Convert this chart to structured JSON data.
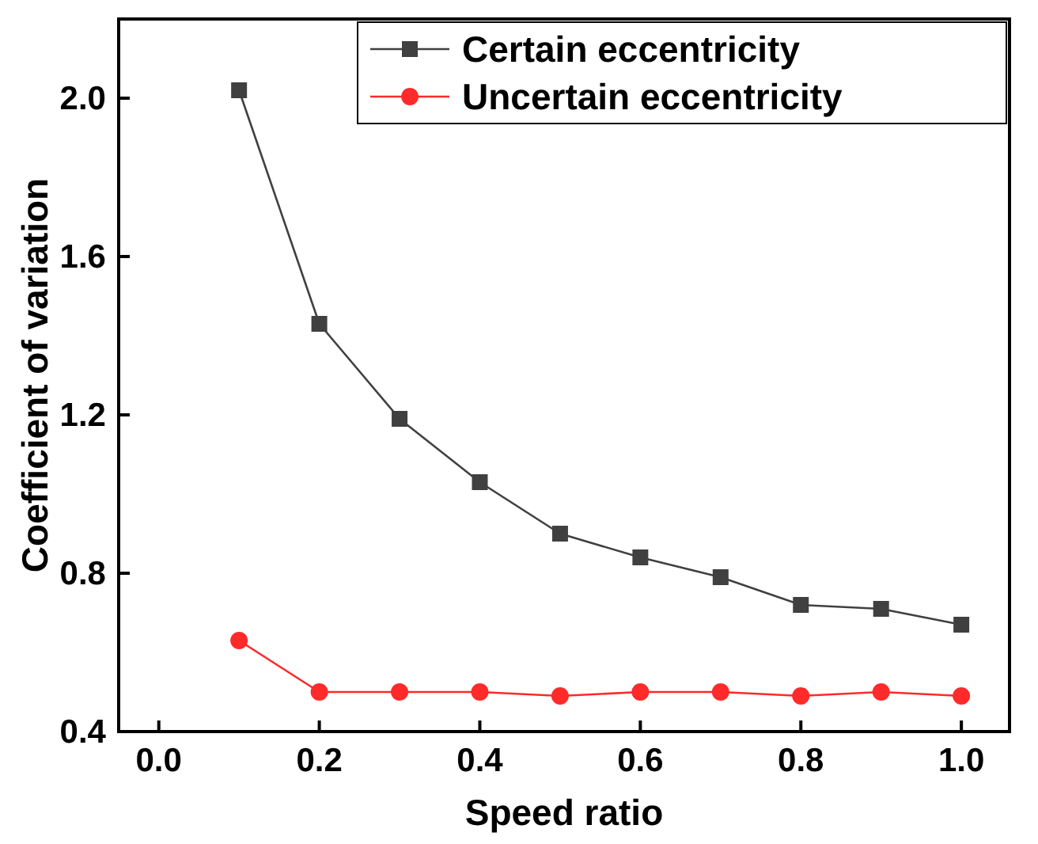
{
  "chart_data": {
    "type": "line",
    "xlabel": "Speed ratio",
    "ylabel": "Coefficient of variation",
    "x": [
      0.1,
      0.2,
      0.3,
      0.4,
      0.5,
      0.6,
      0.7,
      0.8,
      0.9,
      1.0
    ],
    "series": [
      {
        "name": "Certain eccentricity",
        "color": "#404040",
        "marker": "square",
        "values": [
          2.02,
          1.43,
          1.19,
          1.03,
          0.9,
          0.84,
          0.79,
          0.72,
          0.71,
          0.67
        ]
      },
      {
        "name": "Uncertain eccentricity",
        "color": "#ff2a2a",
        "marker": "circle",
        "values": [
          0.63,
          0.5,
          0.5,
          0.5,
          0.49,
          0.5,
          0.5,
          0.49,
          0.5,
          0.49
        ]
      }
    ],
    "xlim": [
      -0.05,
      1.06
    ],
    "ylim": [
      0.4,
      2.2
    ],
    "xticks": [
      {
        "value": 0,
        "label": "0.0"
      },
      0.2,
      0.4,
      0.6,
      0.8,
      {
        "value": 1,
        "label": "1.0"
      }
    ],
    "yticks": [
      0.4,
      0.8,
      1.2,
      1.6,
      {
        "value": 2,
        "label": "2.0"
      }
    ],
    "legend": "top right",
    "grid": false,
    "line_style": "solid"
  }
}
